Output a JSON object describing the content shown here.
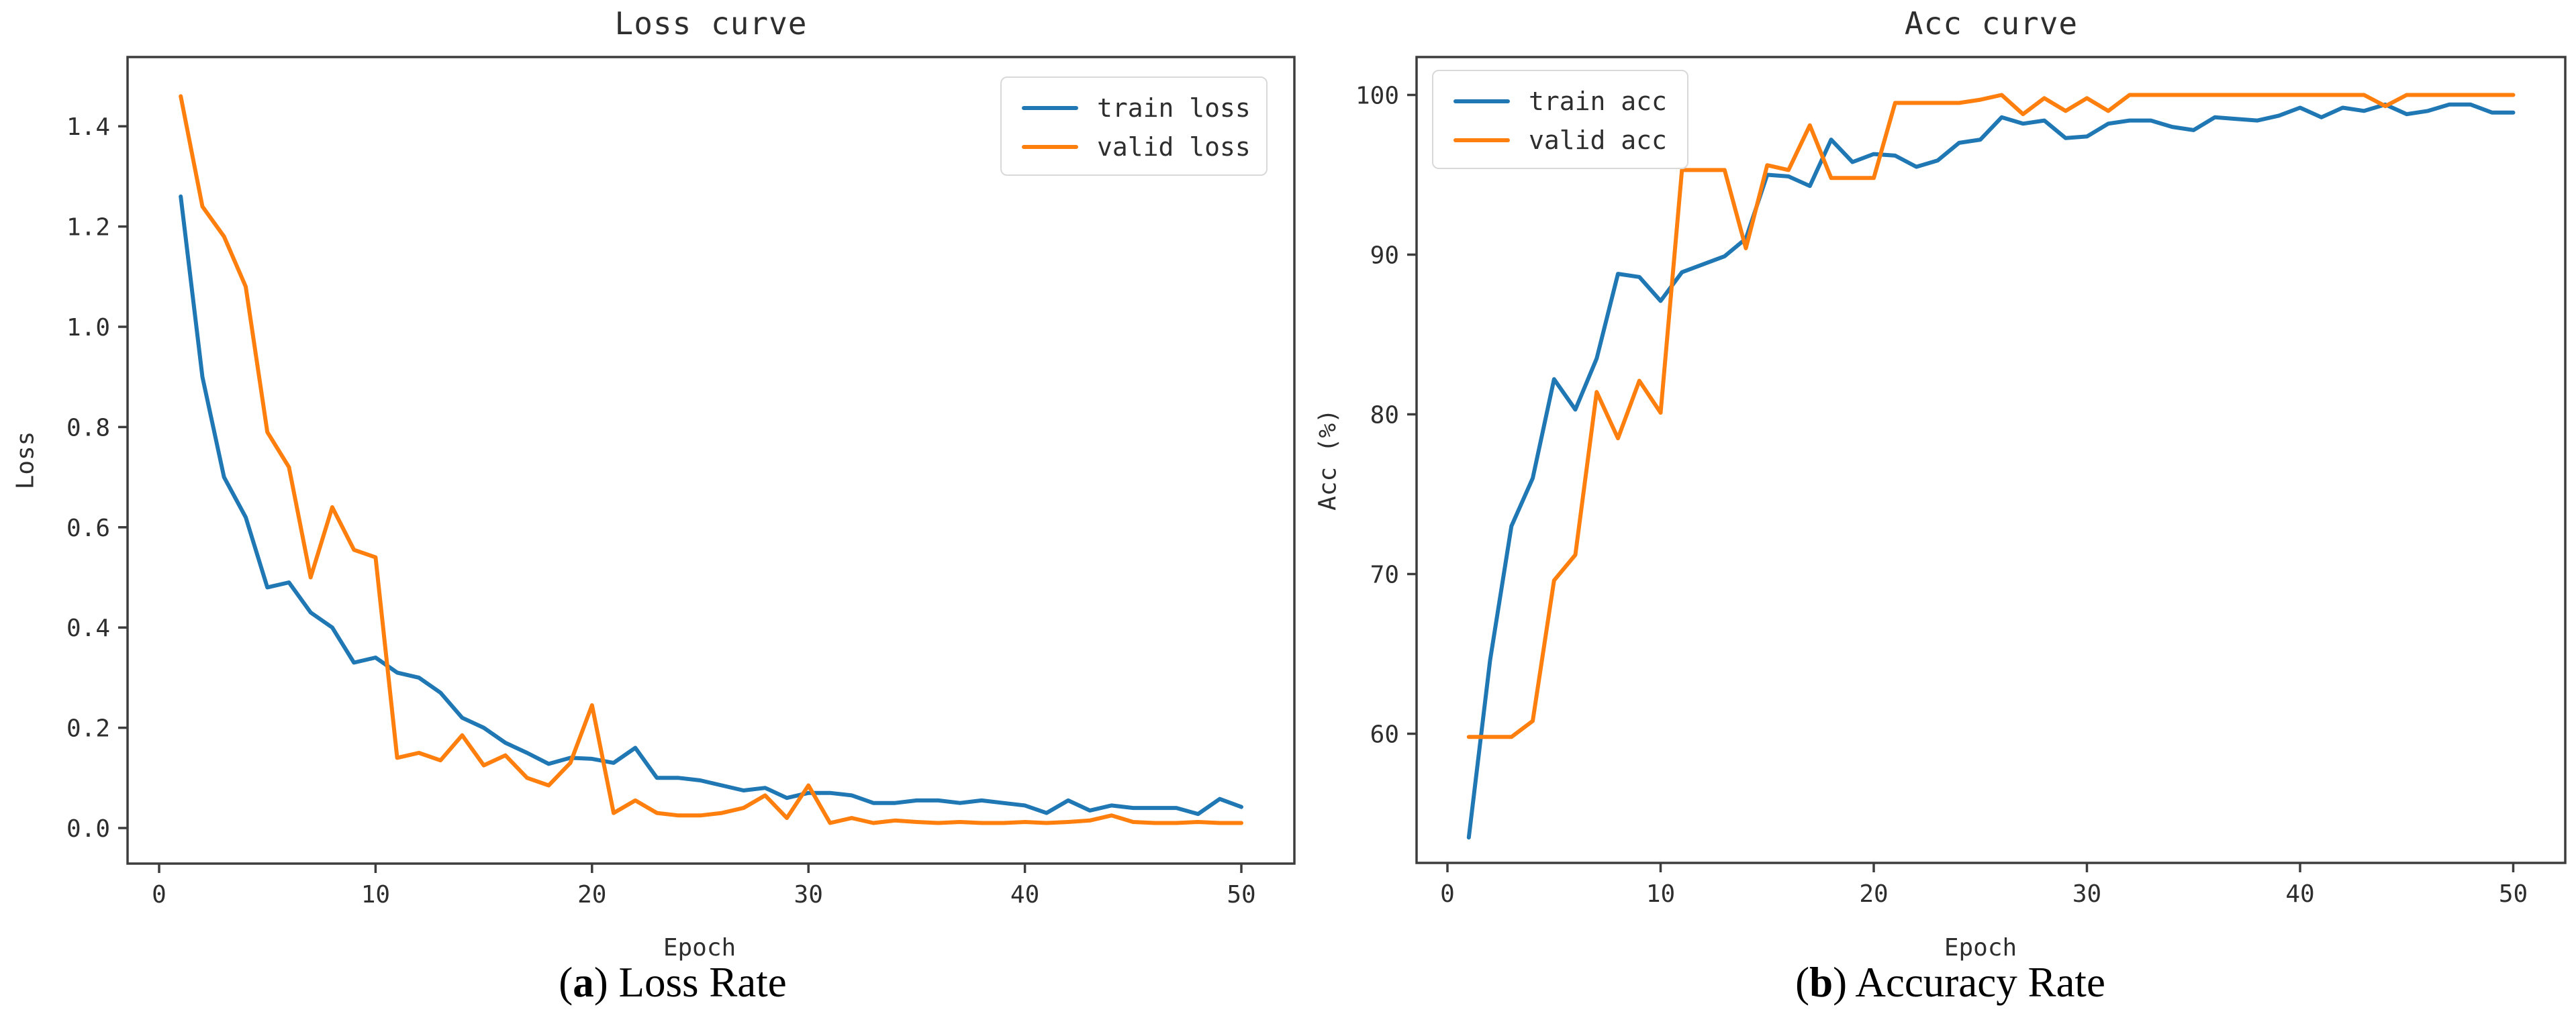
{
  "colors": {
    "train": "#1f77b4",
    "valid": "#ff7f0e",
    "spine": "#3d3d3d",
    "text": "#2e2e2e"
  },
  "chart_data": [
    {
      "type": "line",
      "title": "Loss curve",
      "xlabel": "Epoch",
      "ylabel": "Loss",
      "caption": {
        "open": "(",
        "letter": "a",
        "rest": ") Loss Rate"
      },
      "legend_position": "upper right",
      "grid": false,
      "x_start": 1,
      "xlim": [
        -1.45,
        52.45
      ],
      "ylim": [
        -0.07,
        1.53
      ],
      "xticks": [
        0,
        10,
        20,
        30,
        40,
        50
      ],
      "yticks": [
        "0.0",
        "0.2",
        "0.4",
        "0.6",
        "0.8",
        "1.0",
        "1.2",
        "1.4"
      ],
      "series": [
        {
          "name": "train loss",
          "color_key": "train",
          "values": [
            1.26,
            0.9,
            0.7,
            0.62,
            0.48,
            0.49,
            0.43,
            0.4,
            0.33,
            0.34,
            0.31,
            0.3,
            0.27,
            0.22,
            0.2,
            0.17,
            0.15,
            0.128,
            0.14,
            0.138,
            0.13,
            0.16,
            0.1,
            0.1,
            0.095,
            0.085,
            0.075,
            0.08,
            0.06,
            0.07,
            0.07,
            0.065,
            0.05,
            0.05,
            0.055,
            0.055,
            0.05,
            0.055,
            0.05,
            0.045,
            0.03,
            0.055,
            0.035,
            0.045,
            0.04,
            0.04,
            0.04,
            0.028,
            0.058,
            0.042
          ]
        },
        {
          "name": "valid loss",
          "color_key": "valid",
          "values": [
            1.46,
            1.24,
            1.18,
            1.08,
            0.79,
            0.72,
            0.5,
            0.64,
            0.555,
            0.54,
            0.14,
            0.15,
            0.135,
            0.185,
            0.125,
            0.145,
            0.1,
            0.085,
            0.13,
            0.245,
            0.03,
            0.055,
            0.03,
            0.025,
            0.025,
            0.03,
            0.04,
            0.065,
            0.02,
            0.085,
            0.01,
            0.02,
            0.01,
            0.015,
            0.012,
            0.01,
            0.012,
            0.01,
            0.01,
            0.012,
            0.01,
            0.012,
            0.015,
            0.025,
            0.012,
            0.01,
            0.01,
            0.012,
            0.01,
            0.01
          ]
        }
      ]
    },
    {
      "type": "line",
      "title": "Acc curve",
      "xlabel": "Epoch",
      "ylabel": "Acc (%)",
      "caption": {
        "open": "(",
        "letter": "b",
        "rest": ") Accuracy Rate"
      },
      "legend_position": "upper left",
      "grid": false,
      "x_start": 1,
      "xlim": [
        -1.45,
        52.45
      ],
      "ylim": [
        51.9,
        102.4
      ],
      "xticks": [
        0,
        10,
        20,
        30,
        40,
        50
      ],
      "yticks": [
        "60",
        "70",
        "80",
        "90",
        "100"
      ],
      "series": [
        {
          "name": "train acc",
          "color_key": "train",
          "values": [
            53.5,
            64.6,
            73.0,
            76.0,
            82.2,
            80.3,
            83.5,
            88.8,
            88.6,
            87.1,
            88.9,
            89.4,
            89.9,
            91.0,
            95.0,
            94.9,
            94.3,
            97.2,
            95.8,
            96.3,
            96.2,
            95.5,
            95.9,
            97.0,
            97.2,
            98.6,
            98.2,
            98.4,
            97.3,
            97.4,
            98.2,
            98.4,
            98.4,
            98.0,
            97.8,
            98.6,
            98.5,
            98.4,
            98.7,
            99.2,
            98.6,
            99.2,
            99.0,
            99.4,
            98.8,
            99.0,
            99.4,
            99.4,
            98.9,
            98.9
          ]
        },
        {
          "name": "valid acc",
          "color_key": "valid",
          "values": [
            59.8,
            59.8,
            59.8,
            60.8,
            69.6,
            71.2,
            81.4,
            78.5,
            82.1,
            80.1,
            95.3,
            95.3,
            95.3,
            90.4,
            95.6,
            95.3,
            98.1,
            94.8,
            94.8,
            94.8,
            99.5,
            99.5,
            99.5,
            99.5,
            99.7,
            100,
            98.8,
            99.8,
            99.0,
            99.8,
            99.0,
            100,
            100,
            100,
            100,
            100,
            100,
            100,
            100,
            100,
            100,
            100,
            100,
            99.3,
            100,
            100,
            100,
            100,
            100,
            100
          ]
        }
      ]
    }
  ]
}
